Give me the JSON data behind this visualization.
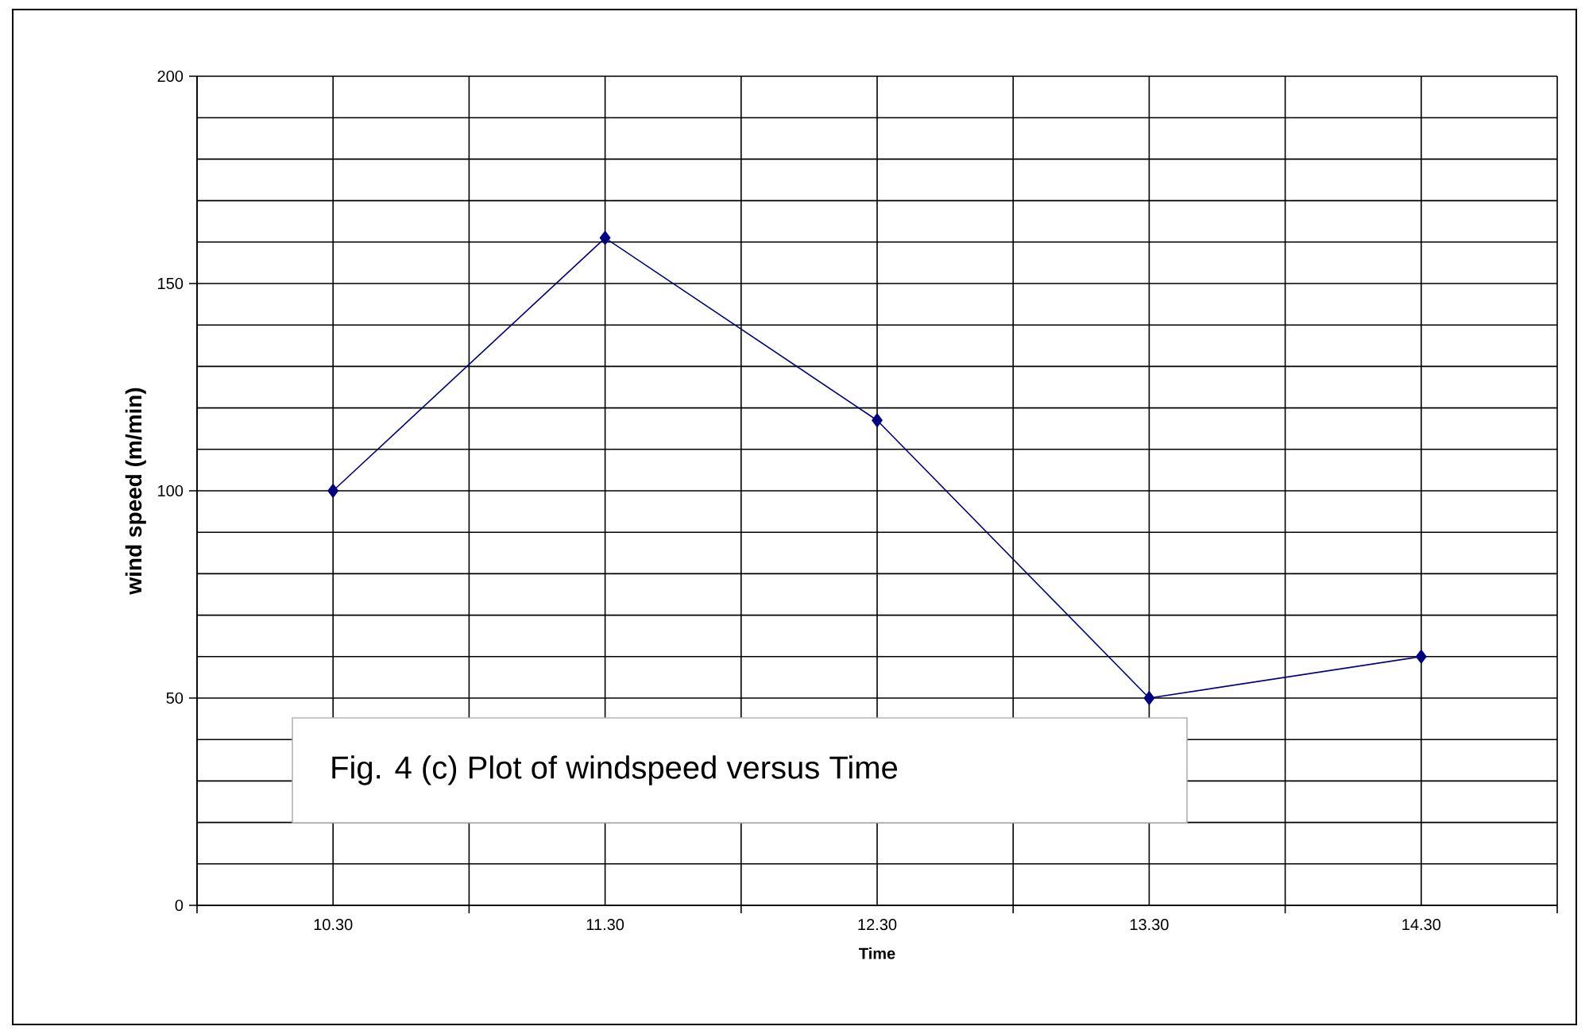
{
  "chart_data": {
    "type": "line",
    "xlabel": "Time",
    "ylabel": "wind speed (m/min)",
    "categories": [
      "10.30",
      "11.30",
      "12.30",
      "13.30",
      "14.30"
    ],
    "series": [
      {
        "color": "#000080",
        "values": [
          100,
          161,
          117,
          50,
          60
        ]
      }
    ],
    "ylim": [
      0,
      200
    ],
    "yticks": [
      0,
      50,
      100,
      150,
      200
    ],
    "grid": true,
    "marker": "diamond",
    "line_style": "solid",
    "legend": false,
    "annotations": [
      "Fig. 4 (c) Plot of windspeed versus Time"
    ]
  }
}
